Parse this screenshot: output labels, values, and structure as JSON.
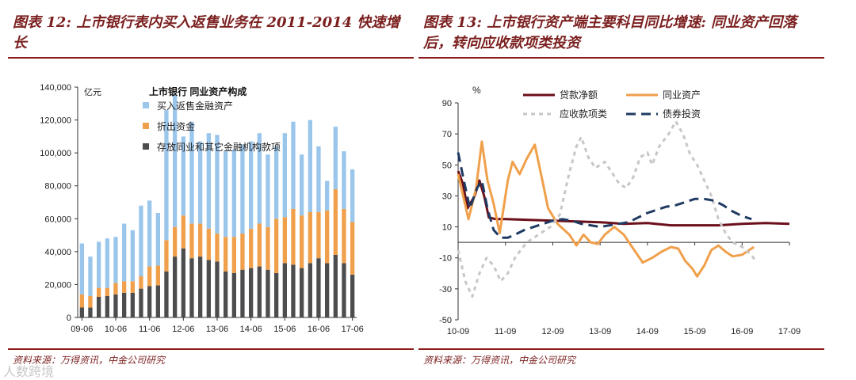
{
  "left": {
    "figure_title": "图表 12: 上市银行表内买入返售业务在 2011-2014 快速增长",
    "source": "资料来源：万得资讯，中金公司研究"
  },
  "right": {
    "figure_title": "图表 13: 上市银行资产端主要科目同比增速: 同业资产回落后，转向应收款项类投资",
    "source": "资料来源：万得资讯，中金公司研究"
  },
  "watermark": "人数跨境",
  "colors": {
    "accent": "#7b1f1f",
    "repo": "#9bc6ec",
    "lending": "#f0a04b",
    "deposits": "#4d4d4f",
    "loans": "#6b0f1a",
    "interbank": "#f0a04b",
    "receivables": "#c7c7c7",
    "bonds": "#1f3b63"
  },
  "chart_data": [
    {
      "type": "bar",
      "stacked": true,
      "title": "上市银行  同业资产构成",
      "ylabel": "亿元",
      "ylim": [
        0,
        140000
      ],
      "yticks": [
        0,
        20000,
        40000,
        60000,
        80000,
        100000,
        120000,
        140000
      ],
      "ytick_labels": [
        "0",
        "20,000",
        "40,000",
        "60,000",
        "80,000",
        "100,000",
        "120,000",
        "140,000"
      ],
      "xtick_labels": [
        "09-06",
        "10-06",
        "11-06",
        "12-06",
        "13-06",
        "14-06",
        "15-06",
        "16-06",
        "17-06"
      ],
      "categories": [
        "09-06",
        "09-09",
        "09-12",
        "10-03",
        "10-06",
        "10-09",
        "10-12",
        "11-03",
        "11-06",
        "11-09",
        "11-12",
        "12-03",
        "12-06",
        "12-09",
        "12-12",
        "13-03",
        "13-06",
        "13-09",
        "13-12",
        "14-03",
        "14-06",
        "14-09",
        "14-12",
        "15-03",
        "15-06",
        "15-09",
        "15-12",
        "16-03",
        "16-06",
        "16-09",
        "16-12",
        "17-03",
        "17-06"
      ],
      "legend_position": "top-left",
      "series": [
        {
          "name": "存放同业和其它金融机构款项",
          "values": [
            6000,
            6000,
            12500,
            13000,
            14000,
            15000,
            15000,
            17500,
            19000,
            19500,
            28000,
            37000,
            42000,
            36000,
            37000,
            35000,
            34000,
            28000,
            27000,
            29000,
            30000,
            31000,
            29000,
            27000,
            33000,
            32000,
            30000,
            33000,
            36000,
            33000,
            38000,
            33000,
            26000
          ]
        },
        {
          "name": "折出资金",
          "values": [
            8000,
            7000,
            5500,
            5000,
            7000,
            7000,
            7000,
            7500,
            12000,
            12000,
            19000,
            18000,
            20000,
            21000,
            20000,
            19000,
            17000,
            21000,
            22000,
            22000,
            24000,
            26000,
            26000,
            33000,
            28000,
            34000,
            32000,
            31000,
            28000,
            32000,
            40000,
            33000,
            32000
          ]
        },
        {
          "name": "买入返售金融资产",
          "values": [
            31000,
            24000,
            28000,
            30000,
            28000,
            35000,
            31000,
            43000,
            40000,
            32000,
            79000,
            80000,
            48000,
            62000,
            50000,
            58000,
            60000,
            52000,
            53000,
            54000,
            53000,
            55000,
            44000,
            44000,
            51000,
            53000,
            37000,
            56000,
            40000,
            18000,
            38000,
            35000,
            32000
          ]
        }
      ]
    },
    {
      "type": "line",
      "ylabel": "%",
      "ylim": [
        -50,
        90
      ],
      "yticks": [
        -50,
        -30,
        -10,
        10,
        30,
        50,
        70,
        90
      ],
      "x": [
        "10-09",
        "11-09",
        "12-09",
        "13-09",
        "14-09",
        "15-09",
        "16-09",
        "17-09"
      ],
      "xtick_labels": [
        "10-09",
        "11-09",
        "12-09",
        "13-09",
        "14-09",
        "15-09",
        "16-09",
        "17-09"
      ],
      "legend_position": "top",
      "series": [
        {
          "name": "贷款净额",
          "style": "solid",
          "points": [
            [
              0,
              46
            ],
            [
              0.1,
              38
            ],
            [
              0.2,
              22
            ],
            [
              0.35,
              30
            ],
            [
              0.45,
              40
            ],
            [
              0.55,
              30
            ],
            [
              0.65,
              16
            ],
            [
              0.8,
              15
            ],
            [
              1,
              15
            ],
            [
              1.5,
              14.5
            ],
            [
              2,
              14
            ],
            [
              2.5,
              13.5
            ],
            [
              3,
              13
            ],
            [
              3.5,
              12
            ],
            [
              4,
              12.5
            ],
            [
              4.5,
              11
            ],
            [
              5,
              11
            ],
            [
              5.5,
              11
            ],
            [
              6,
              12
            ],
            [
              6.5,
              12.5
            ],
            [
              7,
              12
            ]
          ]
        },
        {
          "name": "同业资产",
          "style": "solid",
          "points": [
            [
              0,
              44
            ],
            [
              0.12,
              28
            ],
            [
              0.22,
              15
            ],
            [
              0.38,
              35
            ],
            [
              0.5,
              65
            ],
            [
              0.62,
              40
            ],
            [
              0.75,
              25
            ],
            [
              0.88,
              6
            ],
            [
              0.95,
              20
            ],
            [
              1.05,
              40
            ],
            [
              1.15,
              52
            ],
            [
              1.3,
              44
            ],
            [
              1.45,
              54
            ],
            [
              1.62,
              63
            ],
            [
              1.78,
              40
            ],
            [
              1.9,
              22
            ],
            [
              2.1,
              12
            ],
            [
              2.35,
              5
            ],
            [
              2.5,
              -2
            ],
            [
              2.65,
              5
            ],
            [
              2.8,
              0
            ],
            [
              2.95,
              -1
            ],
            [
              3.1,
              5
            ],
            [
              3.3,
              10
            ],
            [
              3.5,
              5
            ],
            [
              3.7,
              -4
            ],
            [
              3.9,
              -13
            ],
            [
              4.1,
              -10
            ],
            [
              4.3,
              -6
            ],
            [
              4.5,
              -3
            ],
            [
              4.65,
              -4
            ],
            [
              4.8,
              -12
            ],
            [
              4.95,
              -17
            ],
            [
              5.05,
              -22
            ],
            [
              5.2,
              -15
            ],
            [
              5.35,
              -5
            ],
            [
              5.5,
              -2
            ],
            [
              5.65,
              -6
            ],
            [
              5.8,
              -9
            ],
            [
              6,
              -8
            ],
            [
              6.25,
              -3
            ]
          ]
        },
        {
          "name": "应收款项类",
          "style": "dotted",
          "points": [
            [
              0,
              -5
            ],
            [
              0.15,
              -25
            ],
            [
              0.3,
              -35
            ],
            [
              0.45,
              -20
            ],
            [
              0.6,
              -10
            ],
            [
              0.75,
              -15
            ],
            [
              0.9,
              -25
            ],
            [
              1.05,
              -20
            ],
            [
              1.2,
              -10
            ],
            [
              1.45,
              0
            ],
            [
              1.7,
              5
            ],
            [
              1.95,
              10
            ],
            [
              2.15,
              18
            ],
            [
              2.35,
              45
            ],
            [
              2.5,
              62
            ],
            [
              2.6,
              68
            ],
            [
              2.75,
              55
            ],
            [
              2.9,
              48
            ],
            [
              3.1,
              52
            ],
            [
              3.25,
              45
            ],
            [
              3.4,
              38
            ],
            [
              3.55,
              35
            ],
            [
              3.7,
              42
            ],
            [
              3.85,
              55
            ],
            [
              4,
              58
            ],
            [
              4.1,
              50
            ],
            [
              4.25,
              62
            ],
            [
              4.45,
              70
            ],
            [
              4.6,
              78
            ],
            [
              4.75,
              70
            ],
            [
              4.9,
              57
            ],
            [
              5.05,
              50
            ],
            [
              5.2,
              40
            ],
            [
              5.35,
              30
            ],
            [
              5.5,
              15
            ],
            [
              5.65,
              6
            ],
            [
              5.8,
              0
            ],
            [
              6,
              -3
            ],
            [
              6.2,
              -8
            ],
            [
              6.3,
              -13
            ]
          ]
        },
        {
          "name": "债券投资",
          "style": "dashed",
          "points": [
            [
              0,
              58
            ],
            [
              0.12,
              40
            ],
            [
              0.25,
              22
            ],
            [
              0.4,
              35
            ],
            [
              0.5,
              40
            ],
            [
              0.62,
              22
            ],
            [
              0.75,
              8
            ],
            [
              0.9,
              3
            ],
            [
              1.05,
              3
            ],
            [
              1.2,
              5
            ],
            [
              1.4,
              8
            ],
            [
              1.6,
              10
            ],
            [
              1.8,
              12
            ],
            [
              2,
              14
            ],
            [
              2.2,
              15
            ],
            [
              2.4,
              14
            ],
            [
              2.6,
              12
            ],
            [
              2.8,
              11
            ],
            [
              3,
              10
            ],
            [
              3.2,
              11
            ],
            [
              3.4,
              12
            ],
            [
              3.6,
              13
            ],
            [
              3.8,
              16
            ],
            [
              4,
              19
            ],
            [
              4.2,
              21
            ],
            [
              4.4,
              23
            ],
            [
              4.6,
              24
            ],
            [
              4.8,
              26
            ],
            [
              5,
              28
            ],
            [
              5.2,
              28
            ],
            [
              5.4,
              27
            ],
            [
              5.6,
              24
            ],
            [
              5.8,
              20
            ],
            [
              6,
              17
            ],
            [
              6.2,
              15
            ]
          ]
        }
      ]
    }
  ]
}
